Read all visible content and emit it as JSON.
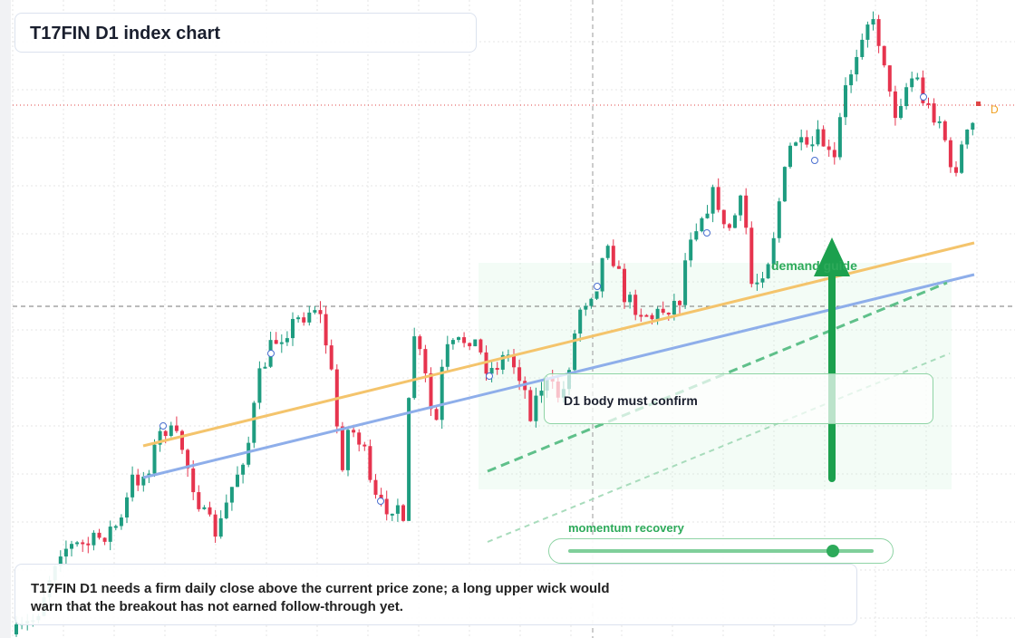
{
  "header": {
    "title": "T17FIN D1 index chart"
  },
  "annotations": {
    "zone_label": "demand guide",
    "callout": "D1 body must confirm",
    "momentum_label": "momentum recovery",
    "price_tag": "D"
  },
  "caption": {
    "lines": [
      "T17FIN D1 needs a firm daily close above the current price zone; a long upper wick would",
      "warn that the breakout has not earned follow-through yet."
    ]
  }
}
